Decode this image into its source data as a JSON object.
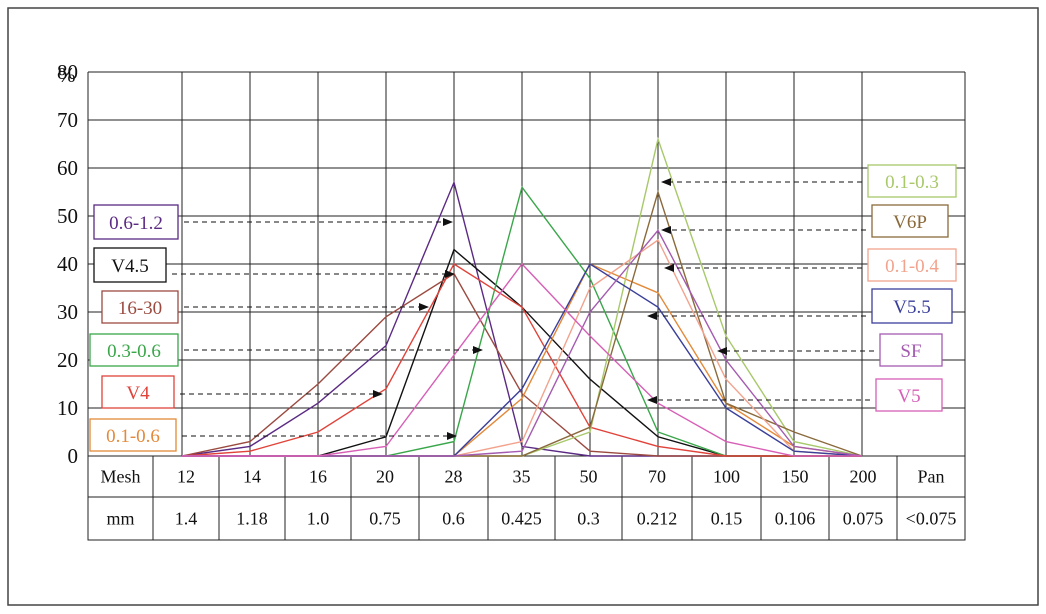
{
  "chart_data": {
    "type": "line",
    "ylabel": "%",
    "ylim": [
      0,
      80
    ],
    "yticks": [
      0,
      10,
      20,
      30,
      40,
      50,
      60,
      70,
      80
    ],
    "grid": true,
    "table": {
      "row1_header": "Mesh",
      "row2_header": "mm",
      "mesh": [
        "12",
        "14",
        "16",
        "20",
        "28",
        "35",
        "50",
        "70",
        "100",
        "150",
        "200",
        "Pan"
      ],
      "mm": [
        "1.4",
        "1.18",
        "1.0",
        "0.75",
        "0.6",
        "0.425",
        "0.3",
        "0.212",
        "0.15",
        "0.106",
        "0.075",
        "<0.075"
      ]
    },
    "series": [
      {
        "name": "0.6-1.2",
        "color": "#5b2a83",
        "values": [
          0,
          2,
          11,
          23,
          57,
          2,
          0,
          0,
          0,
          0,
          0
        ]
      },
      {
        "name": "V4.5",
        "color": "#111111",
        "values": [
          0,
          0,
          0,
          4,
          43,
          31,
          16,
          4,
          0,
          0,
          0
        ]
      },
      {
        "name": "16-30",
        "color": "#9b4a40",
        "values": [
          0,
          3,
          15,
          29,
          38,
          13,
          1,
          0,
          0,
          0,
          0
        ]
      },
      {
        "name": "0.3-0.6",
        "color": "#3aa64a",
        "values": [
          0,
          0,
          0,
          0,
          3,
          56,
          37,
          5,
          0,
          0,
          0
        ]
      },
      {
        "name": "V4",
        "color": "#e0433a",
        "values": [
          0,
          1,
          5,
          14,
          40,
          31,
          6,
          2,
          0,
          0,
          0
        ]
      },
      {
        "name": "0.1-0.6",
        "color": "#e38a3a",
        "values": [
          0,
          0,
          0,
          0,
          0,
          12,
          40,
          34,
          11,
          2,
          0
        ]
      },
      {
        "name": "0.1-0.3",
        "color": "#a8c86b",
        "values": [
          0,
          0,
          0,
          0,
          0,
          0,
          5,
          66,
          25,
          3,
          0
        ]
      },
      {
        "name": "V6P",
        "color": "#8a6a3b",
        "values": [
          0,
          0,
          0,
          0,
          0,
          0,
          6,
          55,
          11,
          5,
          0
        ]
      },
      {
        "name": "0.1-0.4",
        "color": "#f2a38d",
        "values": [
          0,
          0,
          0,
          0,
          0,
          3,
          35,
          45,
          16,
          1,
          0
        ]
      },
      {
        "name": "V5.5",
        "color": "#3a3f9a",
        "values": [
          0,
          0,
          0,
          0,
          0,
          14,
          40,
          31,
          10,
          1,
          0
        ]
      },
      {
        "name": "SF",
        "color": "#a45bb0",
        "values": [
          0,
          0,
          0,
          0,
          0,
          1,
          30,
          47,
          20,
          2,
          0
        ]
      },
      {
        "name": "V5",
        "color": "#d75fb6",
        "values": [
          0,
          0,
          0,
          2,
          21,
          40,
          25,
          11,
          3,
          0,
          0
        ]
      }
    ],
    "legend": [
      {
        "text": "0.1-0.3",
        "side": "right"
      },
      {
        "text": "V6P",
        "side": "right"
      },
      {
        "text": "0.1-0.4",
        "side": "right"
      },
      {
        "text": "V5.5",
        "side": "right"
      },
      {
        "text": "SF",
        "side": "right"
      },
      {
        "text": "V5",
        "side": "right"
      },
      {
        "text": "0.6-1.2",
        "side": "left"
      },
      {
        "text": "V4.5",
        "side": "left"
      },
      {
        "text": "16-30",
        "side": "left"
      },
      {
        "text": "0.3-0.6",
        "side": "left"
      },
      {
        "text": "V4",
        "side": "left"
      },
      {
        "text": "0.1-0.6",
        "side": "left"
      }
    ]
  }
}
